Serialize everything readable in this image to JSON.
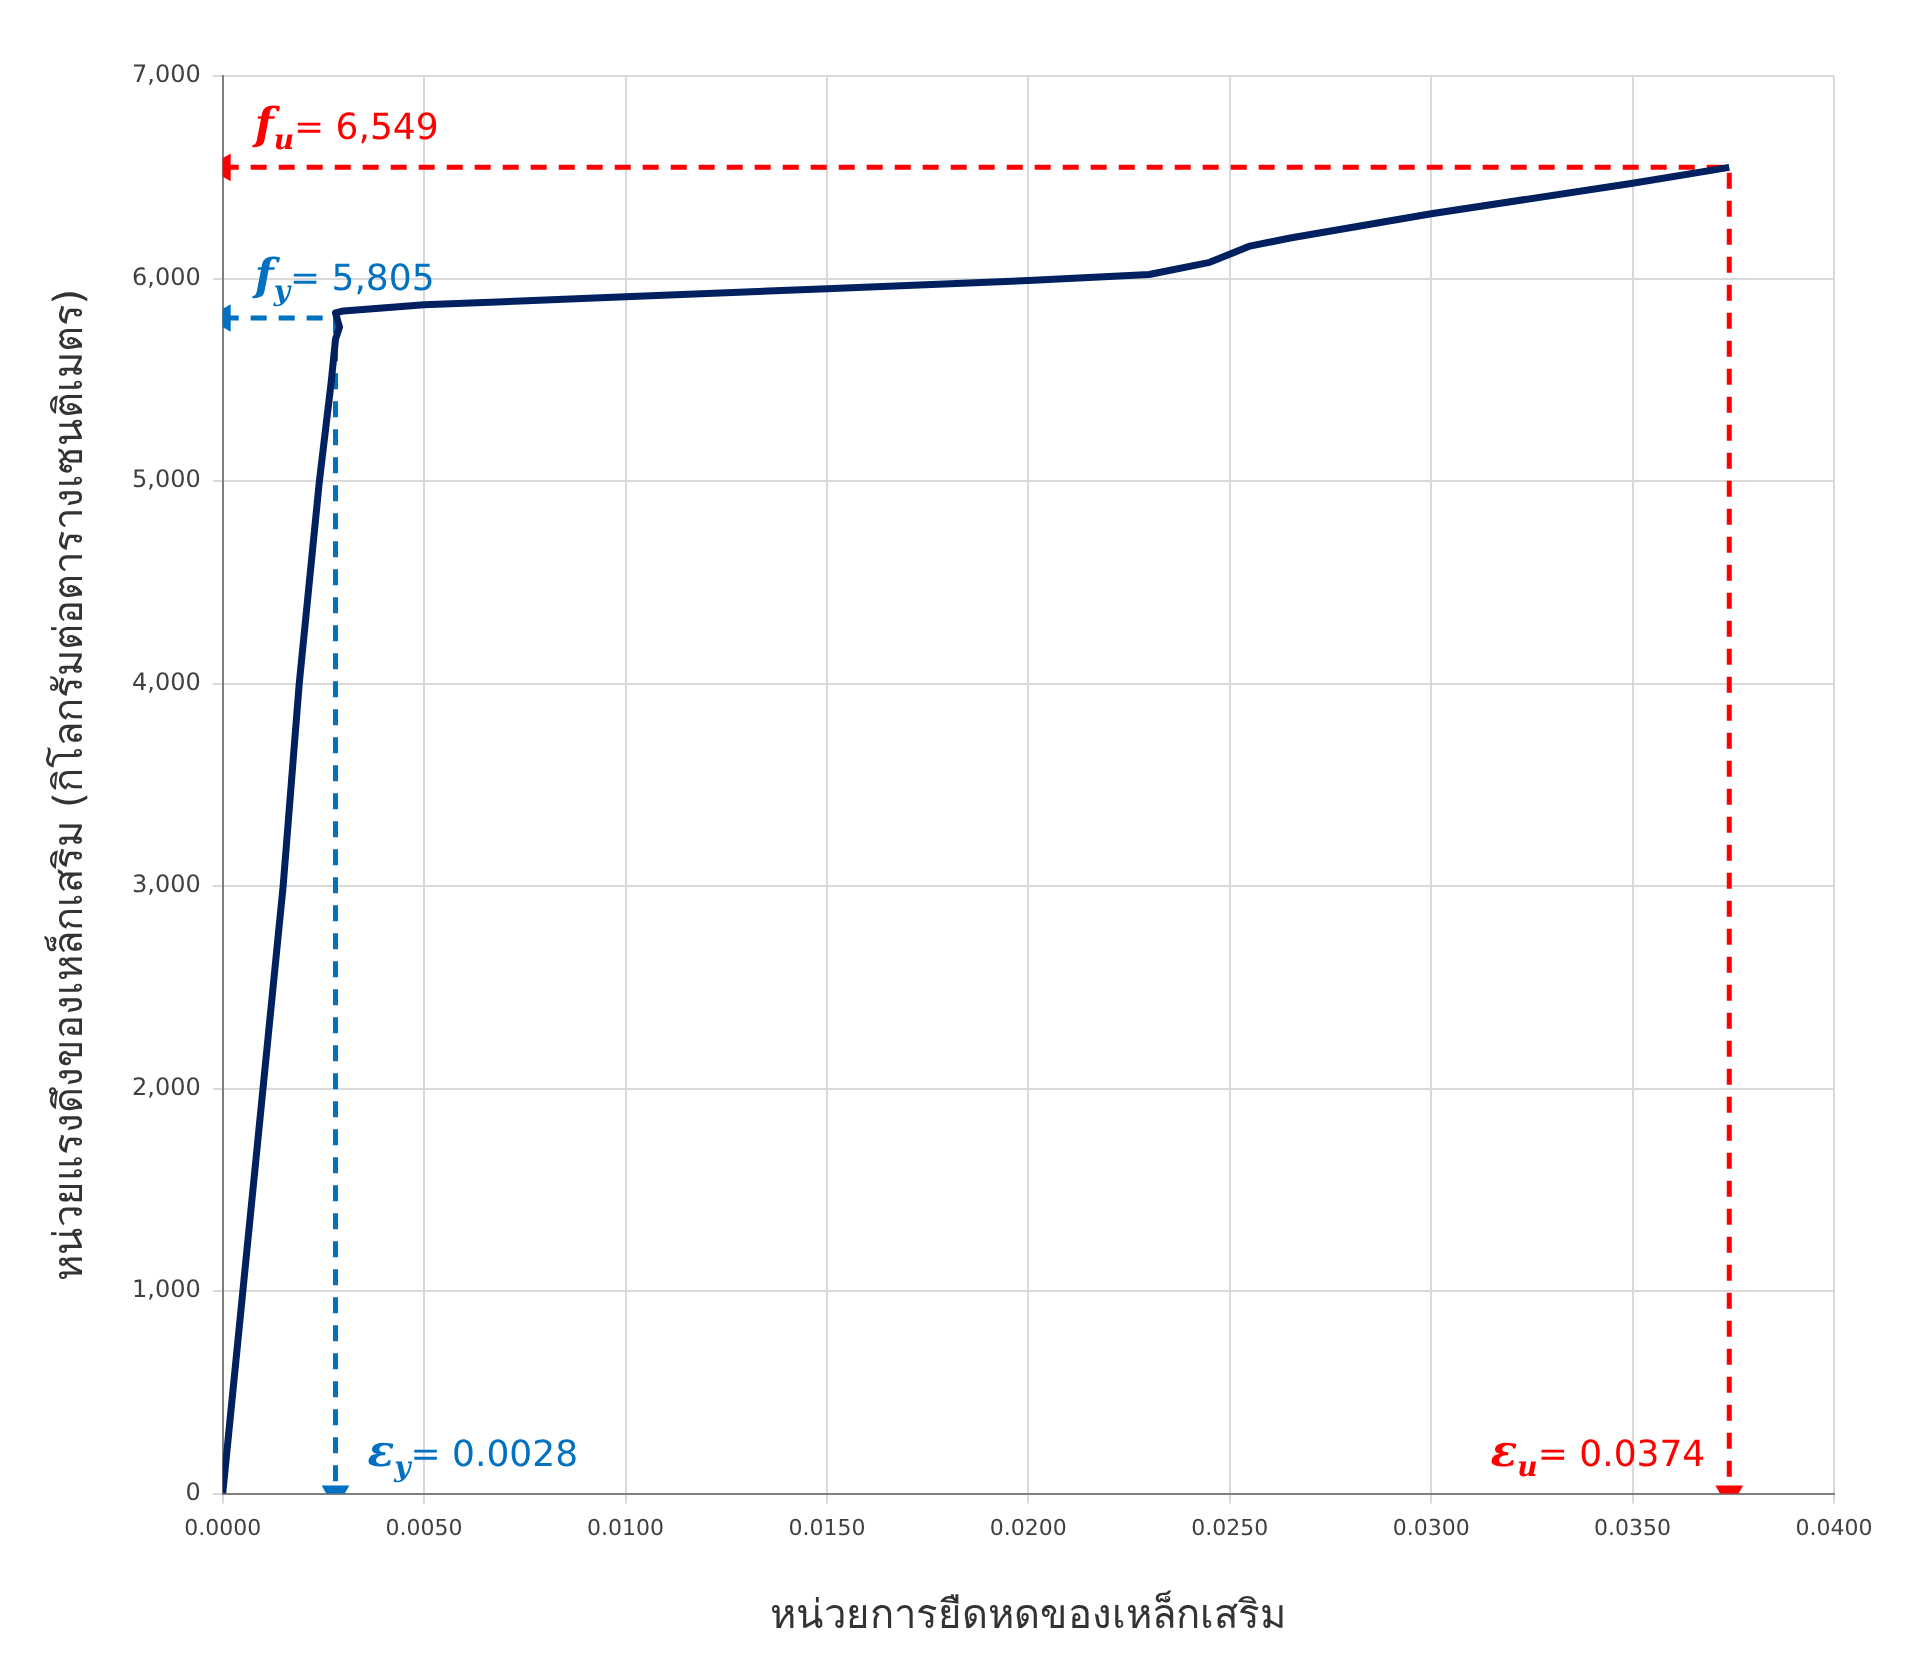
{
  "chart_data": {
    "type": "line",
    "xlabel": "หน่วยการยืดหดของเหล็กเสริม",
    "ylabel": "หน่วยแรงดึงของเหล็กเสริม (กิโลกรัมต่อตารางเซนติเมตร)",
    "xlim": [
      0,
      0.04
    ],
    "xticks": [
      {
        "value": 0,
        "label": "0.0000"
      },
      {
        "value": 0.005,
        "label": "0.0050"
      },
      {
        "value": 0.01,
        "label": "0.0100"
      },
      {
        "value": 0.015,
        "label": "0.0150"
      },
      {
        "value": 0.02,
        "label": "0.0200"
      },
      {
        "value": 0.025,
        "label": "0.0250"
      },
      {
        "value": 0.03,
        "label": "0.0300"
      },
      {
        "value": 0.035,
        "label": "0.0350"
      },
      {
        "value": 0.04,
        "label": "0.0400"
      }
    ],
    "ylim": [
      0,
      7000
    ],
    "yticks": [
      0,
      {
        "value": 1000,
        "label": "1,000"
      },
      {
        "value": 2000,
        "label": "2,000"
      },
      {
        "value": 3000,
        "label": "3,000"
      },
      {
        "value": 4000,
        "label": "4,000"
      },
      {
        "value": 5000,
        "label": "5,000"
      },
      {
        "value": 6000,
        "label": "6,000"
      },
      {
        "value": 7000,
        "label": "7,000"
      }
    ],
    "grid": true,
    "legend": false,
    "marker": "none",
    "series": [
      {
        "color": "#002060",
        "line_style": "solid",
        "x": [
          0,
          0.0005,
          0.001,
          0.0015,
          0.0019,
          0.0024,
          0.0027,
          0.0028,
          0.0029,
          0.0028,
          0.003,
          0.005,
          0.01,
          0.015,
          0.02,
          0.023,
          0.0245,
          0.0255,
          0.0265,
          0.03,
          0.035,
          0.0374
        ],
        "values": [
          0,
          1000,
          2000,
          3000,
          4000,
          5000,
          5500,
          5700,
          5760,
          5830,
          5840,
          5870,
          5910,
          5950,
          5990,
          6020,
          6080,
          6160,
          6200,
          6320,
          6470,
          6549
        ]
      },
      {
        "color": "#ff0000",
        "line_style": "dashed",
        "marker": "triangle",
        "x": [
          0,
          0.0374,
          0.0374
        ],
        "values": [
          6549,
          6549,
          0
        ]
      },
      {
        "color": "#0070c0",
        "line_style": "dashed",
        "marker": "triangle",
        "x": [
          0,
          0.0028,
          0.0028
        ],
        "values": [
          5805,
          5805,
          0
        ]
      }
    ],
    "annotations": [
      {
        "text": "f$_{u}$= 6,549",
        "x": 0,
        "y": 6549
      },
      {
        "text": "f$_{y}$= 5,805",
        "x": 0,
        "y": 5805
      },
      {
        "text": "ε$_{y}$= 0.0028",
        "x": 0.0028,
        "y": 0
      },
      {
        "text": "ε$_{u}$= 0.0374",
        "x": 0.0374,
        "y": 0
      }
    ]
  }
}
